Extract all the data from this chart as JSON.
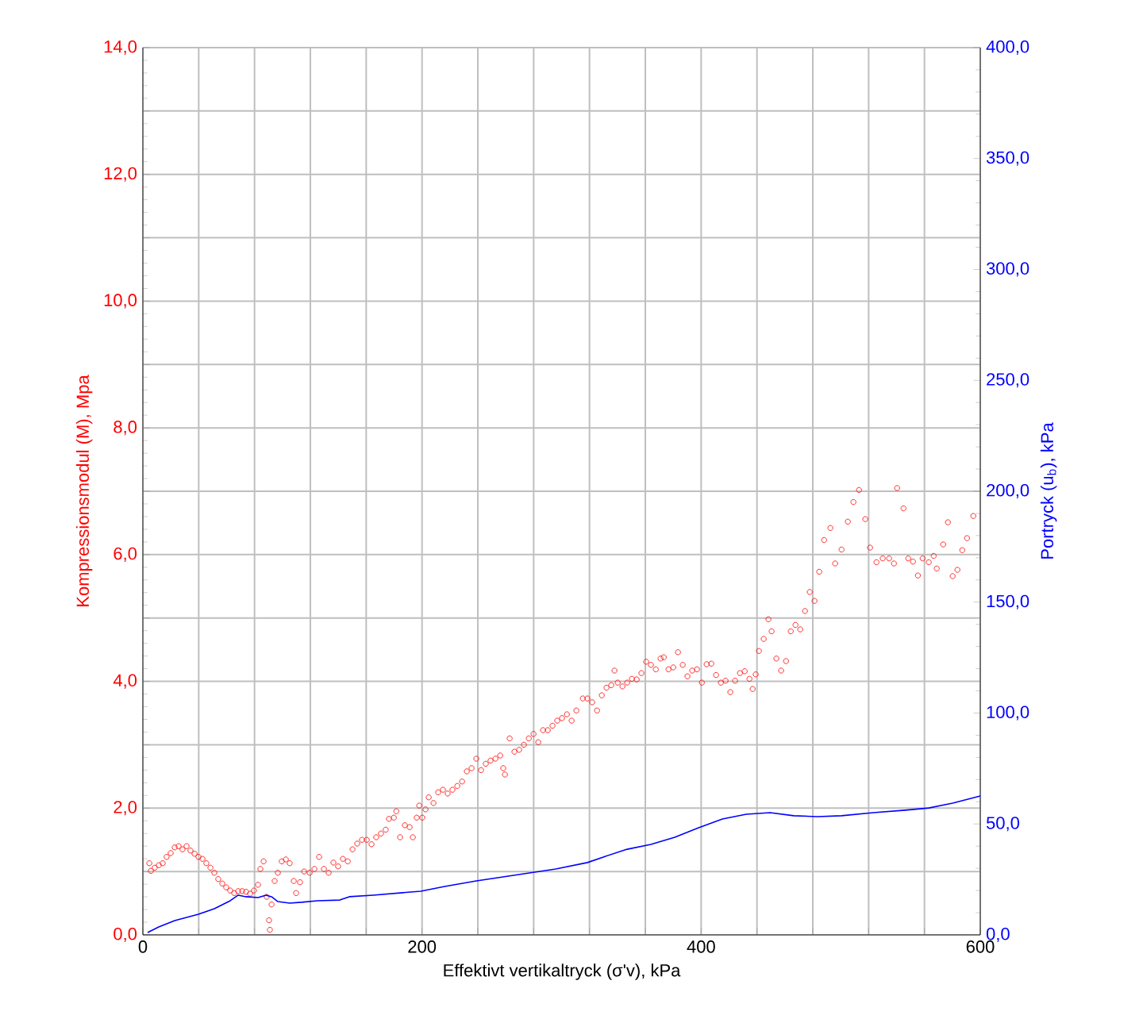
{
  "chart_data": {
    "type": "scatter",
    "xlabel": "Effektivt vertikaltryck (σ'v), kPa",
    "ylabel": "Kompressionsmodul (M), Mpa",
    "y2label": "Portryck (u$_{b}$), kPa",
    "xlim": [
      0,
      600
    ],
    "ylim": [
      0,
      14
    ],
    "y2lim": [
      0,
      400
    ],
    "xticks": [
      0,
      {
        "value": 40,
        "label": null
      },
      {
        "value": 80,
        "label": null
      },
      {
        "value": 120,
        "label": null
      },
      {
        "value": 160,
        "label": null
      },
      200,
      {
        "value": 240,
        "label": null
      },
      {
        "value": 280,
        "label": null
      },
      {
        "value": 320,
        "label": null
      },
      {
        "value": 360,
        "label": null
      },
      400,
      {
        "value": 440,
        "label": null
      },
      {
        "value": 480,
        "label": null
      },
      {
        "value": 520,
        "label": null
      },
      {
        "value": 560,
        "label": null
      },
      600
    ],
    "yticks": [
      {
        "value": 0,
        "label": "0,0"
      },
      {
        "value": 1,
        "label": null
      },
      {
        "value": 2,
        "label": "2,0"
      },
      {
        "value": 3,
        "label": null
      },
      {
        "value": 4,
        "label": "4,0"
      },
      {
        "value": 5,
        "label": null
      },
      {
        "value": 6,
        "label": "6,0"
      },
      {
        "value": 7,
        "label": null
      },
      {
        "value": 8,
        "label": "8,0"
      },
      {
        "value": 9,
        "label": null
      },
      {
        "value": 10,
        "label": "10,0"
      },
      {
        "value": 11,
        "label": null
      },
      {
        "value": 12,
        "label": "12,0"
      },
      {
        "value": 13,
        "label": null
      },
      {
        "value": 14,
        "label": "14,0"
      }
    ],
    "y2ticks": [
      {
        "value": 0,
        "label": "0,0"
      },
      {
        "value": 50,
        "label": "50,0"
      },
      {
        "value": 100,
        "label": "100,0"
      },
      {
        "value": 150,
        "label": "150,0"
      },
      {
        "value": 200,
        "label": "200,0"
      },
      {
        "value": 250,
        "label": "250,0"
      },
      {
        "value": 300,
        "label": "300,0"
      },
      {
        "value": 350,
        "label": "350,0"
      },
      {
        "value": 400,
        "label": "400,0"
      }
    ],
    "grid": true,
    "series": [
      {
        "marker": "circle",
        "color": "#ff0000",
        "x": [
          4.6,
          5.7,
          8.5,
          11.4,
          14.2,
          17,
          19.9,
          22.8,
          25.6,
          28.4,
          31.3,
          34.1,
          37,
          39.8,
          42.7,
          45.5,
          48.4,
          51.2,
          54,
          56.9,
          59.7,
          62.6,
          65.4,
          68.3,
          71.1,
          73.9,
          76.8,
          79.6,
          82.5,
          84.2,
          86.5,
          88.7,
          90.4,
          91,
          92.2,
          94.4,
          96.7,
          99.5,
          102.4,
          105.2,
          108.1,
          109.8,
          112.6,
          115.5,
          119.5,
          122.9,
          126.3,
          129.7,
          133.1,
          136.5,
          139.9,
          143.3,
          146.8,
          150.2,
          153.6,
          157,
          160.4,
          163.8,
          167.2,
          170.6,
          174,
          176.3,
          179.8,
          181.6,
          184.3,
          187.7,
          191.1,
          193.4,
          196.2,
          198,
          200.2,
          202.5,
          204.8,
          208.2,
          211.6,
          215,
          218.4,
          221.8,
          225.3,
          228.7,
          232.1,
          235.5,
          238.9,
          242.3,
          245.7,
          249.1,
          252.6,
          256,
          258.2,
          259.4,
          262.8,
          266.2,
          269.6,
          273,
          276.5,
          279.9,
          283.3,
          286.7,
          290.1,
          293.5,
          296.9,
          300.3,
          303.8,
          307.2,
          310.6,
          315.2,
          318.5,
          321.9,
          325.4,
          328.8,
          332.2,
          335.6,
          337.9,
          340.2,
          343.6,
          347,
          350.4,
          353.8,
          357.2,
          360.6,
          364,
          367.5,
          370.9,
          373.2,
          376.6,
          380,
          383.4,
          386.8,
          390.2,
          393.6,
          397,
          400.5,
          403.9,
          407.3,
          410.7,
          414.1,
          417.5,
          420.9,
          424.3,
          427.8,
          431.2,
          434.6,
          436.9,
          439.1,
          441.4,
          444.8,
          448.2,
          450.5,
          453.9,
          457.3,
          460.8,
          464.2,
          467.6,
          471,
          474.4,
          477.8,
          481.2,
          484.6,
          488.1,
          492.6,
          496,
          500.6,
          505.1,
          509.1,
          513.1,
          517.6,
          521,
          525.6,
          530.1,
          534.7,
          538.1,
          540.4,
          545,
          548.4,
          551.8,
          555.3,
          558.7,
          563.1,
          566.6,
          568.8,
          573.4,
          576.8,
          580.2,
          583.6,
          587.1,
          590.5,
          595
        ],
        "values": [
          1.13,
          1.01,
          1.06,
          1.1,
          1.13,
          1.23,
          1.29,
          1.38,
          1.4,
          1.35,
          1.4,
          1.33,
          1.28,
          1.23,
          1.2,
          1.13,
          1.06,
          0.98,
          0.88,
          0.81,
          0.75,
          0.7,
          0.66,
          0.69,
          0.69,
          0.68,
          0.65,
          0.7,
          0.79,
          1.04,
          1.16,
          0.6,
          0.23,
          0.08,
          0.48,
          0.85,
          0.98,
          1.16,
          1.19,
          1.13,
          0.85,
          0.66,
          0.83,
          1.0,
          0.98,
          1.04,
          1.23,
          1.04,
          0.98,
          1.14,
          1.08,
          1.2,
          1.16,
          1.35,
          1.44,
          1.5,
          1.5,
          1.43,
          1.54,
          1.6,
          1.66,
          1.83,
          1.85,
          1.95,
          1.54,
          1.73,
          1.7,
          1.54,
          1.85,
          2.04,
          1.85,
          1.98,
          2.17,
          2.08,
          2.25,
          2.29,
          2.23,
          2.29,
          2.35,
          2.42,
          2.58,
          2.63,
          2.78,
          2.6,
          2.7,
          2.75,
          2.78,
          2.83,
          2.63,
          2.53,
          3.1,
          2.89,
          2.92,
          3.0,
          3.1,
          3.17,
          3.04,
          3.23,
          3.23,
          3.3,
          3.38,
          3.42,
          3.48,
          3.38,
          3.54,
          3.73,
          3.73,
          3.67,
          3.54,
          3.78,
          3.9,
          3.94,
          4.17,
          3.98,
          3.92,
          3.98,
          4.04,
          4.03,
          4.13,
          4.31,
          4.26,
          4.19,
          4.36,
          4.38,
          4.19,
          4.22,
          4.46,
          4.26,
          4.08,
          4.17,
          4.19,
          3.98,
          4.27,
          4.28,
          4.1,
          3.98,
          4.01,
          3.83,
          4.01,
          4.13,
          4.16,
          4.04,
          3.88,
          4.11,
          4.48,
          4.67,
          4.98,
          4.79,
          4.36,
          4.17,
          4.32,
          4.79,
          4.89,
          4.82,
          5.11,
          5.41,
          5.27,
          5.73,
          6.23,
          6.42,
          5.86,
          6.08,
          6.52,
          6.83,
          7.02,
          6.56,
          6.11,
          5.88,
          5.94,
          5.94,
          5.86,
          7.05,
          6.73,
          5.94,
          5.89,
          5.67,
          5.94,
          5.88,
          5.98,
          5.78,
          6.16,
          6.51,
          5.66,
          5.76,
          6.07,
          6.26,
          6.61
        ]
      },
      {
        "type": "line",
        "marker": "none",
        "axis": "y2",
        "color": "#0000ff",
        "x": [
          3.4,
          11.4,
          22.8,
          39.8,
          51.2,
          62.6,
          68.3,
          73.9,
          82.5,
          88.2,
          92.2,
          96.7,
          105.2,
          113.8,
          125.1,
          141.1,
          147.9,
          165,
          199.1,
          216.2,
          238.9,
          261.7,
          295.8,
          318.5,
          329.9,
          347,
          364,
          381.1,
          398.2,
          415.2,
          432.3,
          449.4,
          466.4,
          483.5,
          500.6,
          523.3,
          546.1,
          563.1,
          580.2,
          600
        ],
        "values": [
          1.1,
          3.6,
          6.4,
          9.3,
          11.8,
          15.4,
          17.9,
          17.2,
          16.8,
          17.9,
          17.2,
          15.0,
          14.3,
          14.7,
          15.4,
          15.7,
          17.2,
          17.9,
          19.7,
          21.8,
          24.3,
          26.5,
          29.7,
          32.6,
          35.1,
          38.6,
          40.8,
          44.0,
          48.3,
          52.2,
          54.4,
          55.1,
          53.7,
          53.3,
          53.7,
          55.1,
          56.2,
          57.2,
          59.4,
          62.6
        ]
      }
    ]
  }
}
